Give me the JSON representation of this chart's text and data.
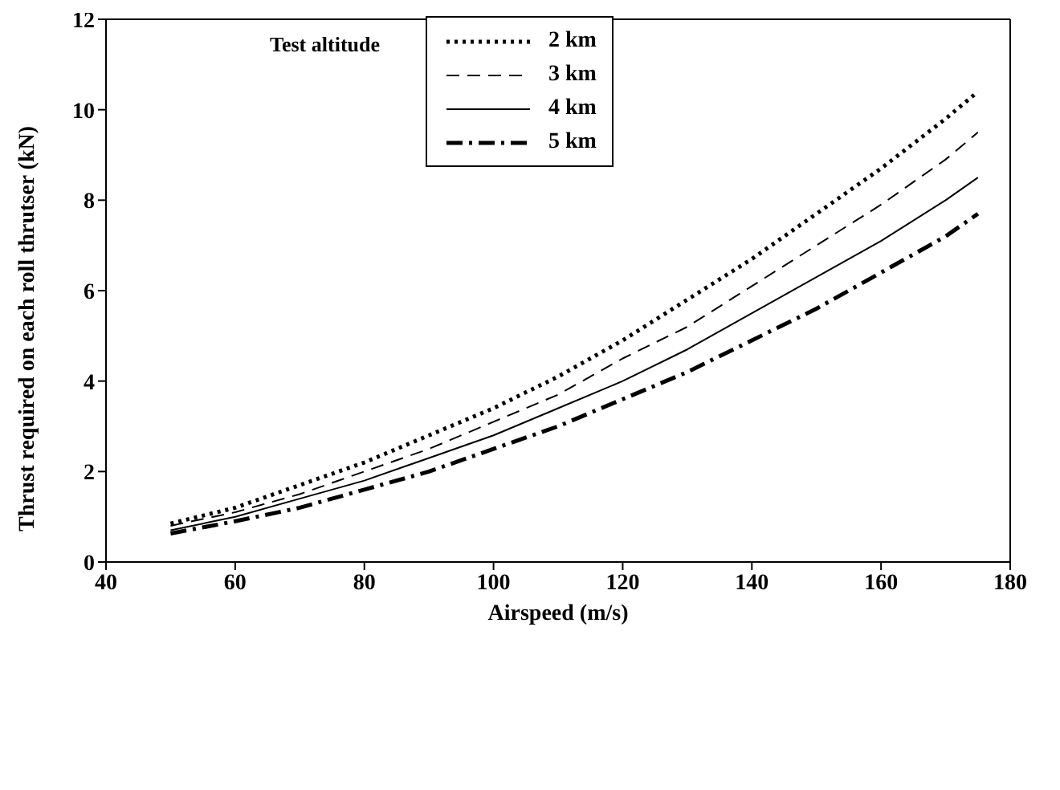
{
  "chart_data": {
    "type": "line",
    "xlabel": "Airspeed (m/s)",
    "ylabel": "Thrust required on each roll thrutser (kN)",
    "legend_title": "Test altitude",
    "x": [
      50,
      60,
      70,
      80,
      90,
      100,
      110,
      120,
      130,
      140,
      150,
      160,
      170,
      175
    ],
    "series": [
      {
        "name": "2 km",
        "color": "#000000",
        "line_style": "dotted",
        "values": [
          0.85,
          1.2,
          1.7,
          2.2,
          2.8,
          3.4,
          4.1,
          4.9,
          5.8,
          6.7,
          7.7,
          8.7,
          9.8,
          10.4
        ]
      },
      {
        "name": "3 km",
        "color": "#000000",
        "line_style": "dashed",
        "values": [
          0.8,
          1.1,
          1.5,
          2.0,
          2.5,
          3.1,
          3.7,
          4.5,
          5.2,
          6.1,
          7.0,
          7.9,
          8.9,
          9.5
        ]
      },
      {
        "name": "4 km",
        "color": "#000000",
        "line_style": "solid",
        "values": [
          0.7,
          1.0,
          1.4,
          1.8,
          2.3,
          2.8,
          3.4,
          4.0,
          4.7,
          5.5,
          6.3,
          7.1,
          8.0,
          8.5
        ]
      },
      {
        "name": "5 km",
        "color": "#000000",
        "line_style": "dashdot",
        "values": [
          0.63,
          0.9,
          1.2,
          1.6,
          2.0,
          2.5,
          3.0,
          3.6,
          4.2,
          4.9,
          5.6,
          6.4,
          7.2,
          7.7
        ]
      }
    ],
    "xlim": [
      40,
      180
    ],
    "xticks": [
      40,
      60,
      80,
      100,
      120,
      140,
      160,
      180
    ],
    "ylim": [
      0,
      12
    ],
    "yticks": [
      0,
      2,
      4,
      6,
      8,
      10,
      12
    ],
    "grid": false,
    "legend": "top",
    "marker": "none"
  }
}
